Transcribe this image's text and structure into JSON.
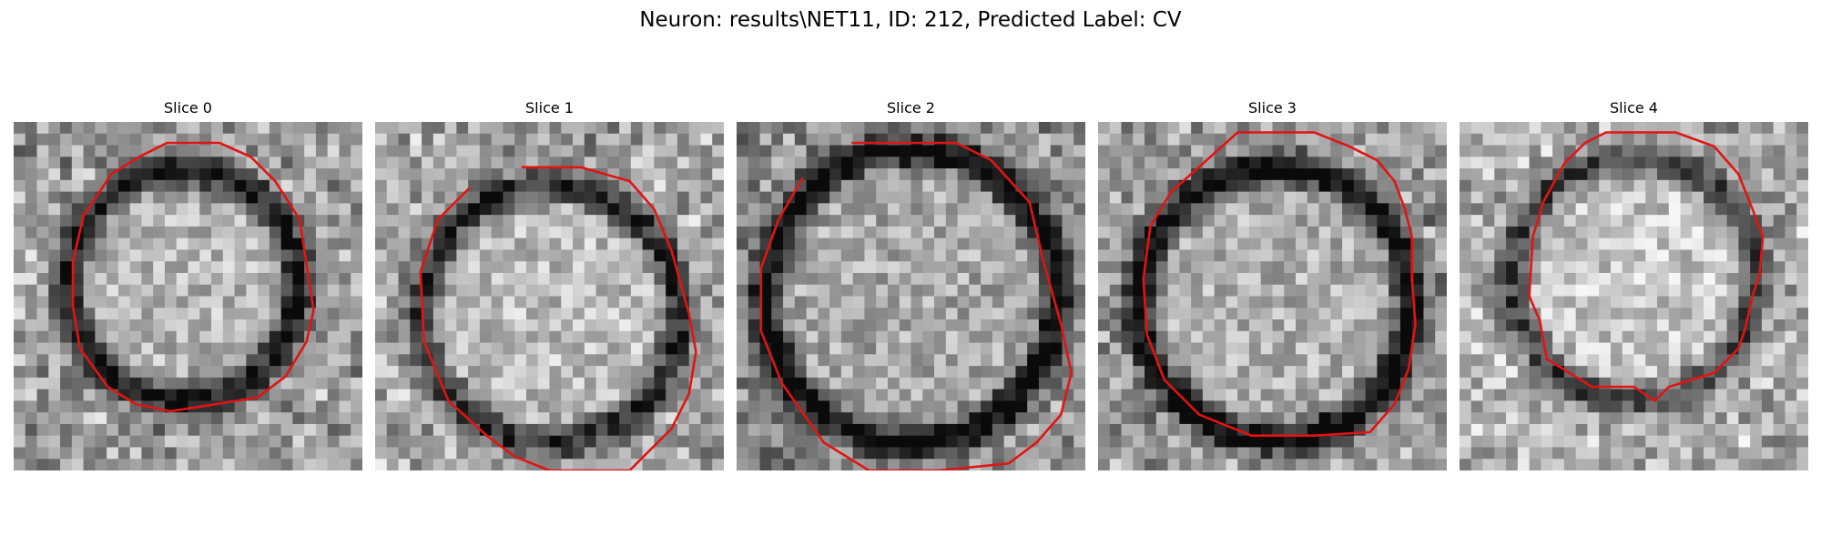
{
  "figure": {
    "title": "Neuron: results\\NET11, ID: 212, Predicted Label: CV",
    "contour_color": "#e11414"
  },
  "panels": [
    {
      "title": "Slice 0"
    },
    {
      "title": "Slice 1"
    },
    {
      "title": "Slice 2"
    },
    {
      "title": "Slice 3"
    },
    {
      "title": "Slice 4"
    }
  ]
}
